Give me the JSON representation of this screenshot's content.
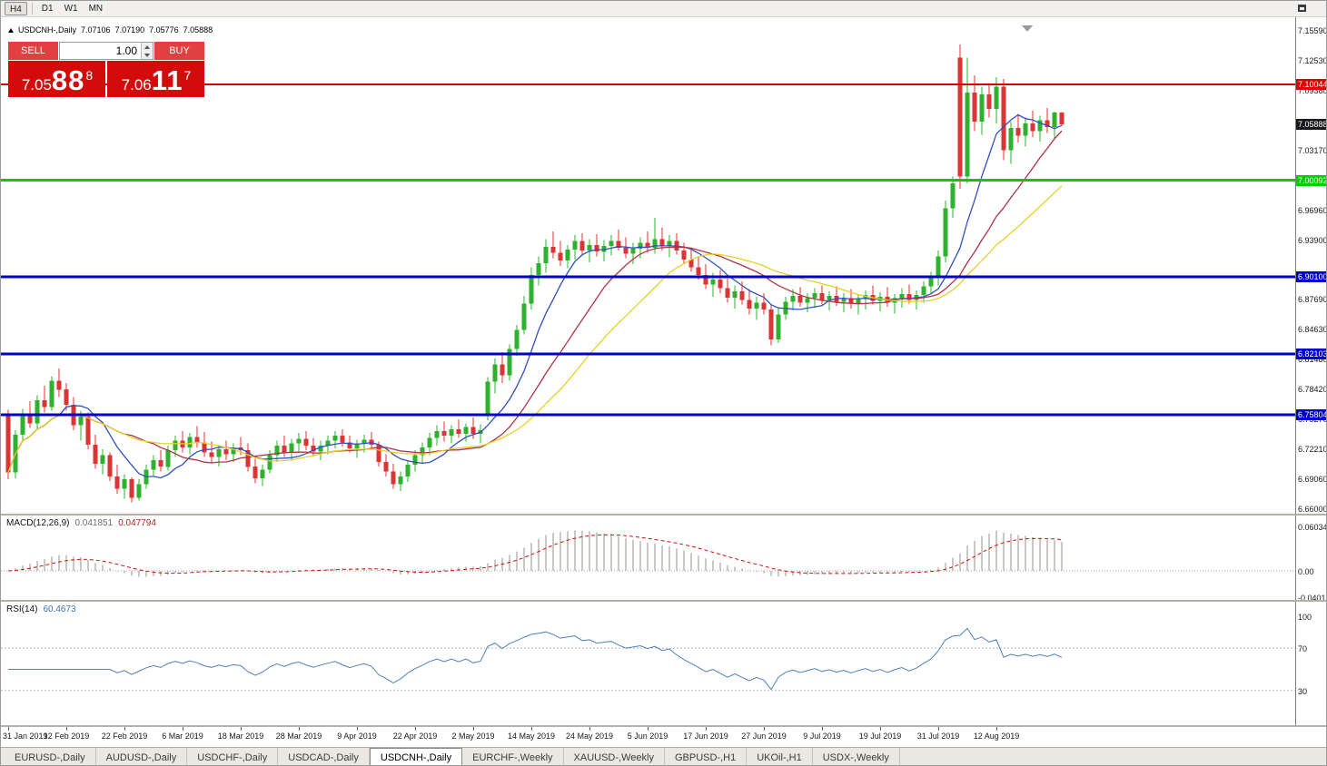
{
  "toolbar": {
    "timeframes": [
      {
        "label": "H4",
        "pressed": true,
        "sep_after": true
      },
      {
        "label": "D1",
        "pressed": false,
        "sep_after": false
      },
      {
        "label": "W1",
        "pressed": false,
        "sep_after": false
      },
      {
        "label": "MN",
        "pressed": false,
        "sep_after": false
      }
    ]
  },
  "chart_header": {
    "symbol": "USDCNH-,Daily",
    "open": "7.07106",
    "high": "7.07190",
    "low": "7.05776",
    "close": "7.05888"
  },
  "trade_panel": {
    "sell_label": "SELL",
    "buy_label": "BUY",
    "volume": "1.00",
    "bid": {
      "base": "7.05",
      "pips": "88",
      "point": "8"
    },
    "ask": {
      "base": "7.06",
      "pips": "11",
      "point": "7"
    }
  },
  "price_axis": {
    "ticks": [
      "7.15590",
      "7.12530",
      "7.09380",
      "7.03170",
      "6.96960",
      "6.93900",
      "6.87690",
      "6.84630",
      "6.81480",
      "6.78420",
      "6.75270",
      "6.72210",
      "6.69060",
      "6.66000"
    ],
    "current_price": {
      "value": "7.05888",
      "bg": "#17181c"
    }
  },
  "hlines": [
    {
      "price": 7.10044,
      "label": "7.10044",
      "color": "#dd0000",
      "thickness": 2
    },
    {
      "price": 7.00092,
      "label": "7.00092",
      "color": "#00cc00",
      "thickness": 3
    },
    {
      "price": 6.901,
      "label": "6.90100",
      "color": "#0000cc",
      "thickness": 3
    },
    {
      "price": 6.82103,
      "label": "6.82103",
      "color": "#0000cc",
      "thickness": 3
    },
    {
      "price": 6.75804,
      "label": "6.75804",
      "color": "#0000cc",
      "thickness": 3
    }
  ],
  "macd_panel": {
    "label": "MACD(12,26,9)",
    "value_main": "0.041851",
    "value_signal": "0.047794",
    "axis_top": "0.060343",
    "axis_zero": "0.00",
    "axis_bottom": "-0.040136"
  },
  "rsi_panel": {
    "label": "RSI(14)",
    "value": "60.4673",
    "axis": [
      "100",
      "70",
      "30"
    ],
    "levels": [
      70,
      30
    ]
  },
  "time_axis": [
    "31 Jan 2019",
    "12 Feb 2019",
    "22 Feb 2019",
    "6 Mar 2019",
    "18 Mar 2019",
    "28 Mar 2019",
    "9 Apr 2019",
    "22 Apr 2019",
    "2 May 2019",
    "14 May 2019",
    "24 May 2019",
    "5 Jun 2019",
    "17 Jun 2019",
    "27 Jun 2019",
    "9 Jul 2019",
    "19 Jul 2019",
    "31 Jul 2019",
    "12 Aug 2019"
  ],
  "tabs": [
    {
      "label": "EURUSD-,Daily",
      "active": false
    },
    {
      "label": "AUDUSD-,Daily",
      "active": false
    },
    {
      "label": "USDCHF-,Daily",
      "active": false
    },
    {
      "label": "USDCAD-,Daily",
      "active": false
    },
    {
      "label": "USDCNH-,Daily",
      "active": true
    },
    {
      "label": "EURCHF-,Weekly",
      "active": false
    },
    {
      "label": "XAUUSD-,Weekly",
      "active": false
    },
    {
      "label": "GBPUSD-,H1",
      "active": false
    },
    {
      "label": "UKOil-,H1",
      "active": false
    },
    {
      "label": "USDX-,Weekly",
      "active": false
    }
  ],
  "colors": {
    "candle_up": "#2bb32b",
    "candle_down": "#e03232",
    "ma_fast": "#3050c0",
    "ma_mid": "#b03345",
    "ma_slow": "#e6cf2a",
    "macd_hist": "#b9b5ae",
    "macd_signal": "#cc1111",
    "rsi_line": "#4f82b8"
  },
  "chart_data": {
    "type": "candlestick",
    "symbol": "USDCNH",
    "timeframe": "Daily",
    "price_range": [
      6.66,
      7.1559
    ],
    "ma_periods": [
      8,
      17,
      26
    ],
    "indicators": {
      "macd": [
        12,
        26,
        9
      ],
      "rsi": 14
    },
    "date_label_every_n_bars": 8,
    "ohlc": [
      [
        6.758,
        6.763,
        6.691,
        6.698
      ],
      [
        6.698,
        6.742,
        6.692,
        6.737
      ],
      [
        6.737,
        6.764,
        6.73,
        6.758
      ],
      [
        6.758,
        6.772,
        6.744,
        6.749
      ],
      [
        6.749,
        6.778,
        6.743,
        6.773
      ],
      [
        6.773,
        6.788,
        6.76,
        6.766
      ],
      [
        6.766,
        6.798,
        6.762,
        6.793
      ],
      [
        6.793,
        6.806,
        6.776,
        6.784
      ],
      [
        6.784,
        6.791,
        6.762,
        6.768
      ],
      [
        6.768,
        6.776,
        6.742,
        6.747
      ],
      [
        6.747,
        6.762,
        6.731,
        6.756
      ],
      [
        6.756,
        6.76,
        6.722,
        6.727
      ],
      [
        6.727,
        6.737,
        6.702,
        6.707
      ],
      [
        6.707,
        6.722,
        6.696,
        6.716
      ],
      [
        6.716,
        6.719,
        6.689,
        6.694
      ],
      [
        6.694,
        6.706,
        6.676,
        6.681
      ],
      [
        6.681,
        6.696,
        6.671,
        6.691
      ],
      [
        6.691,
        6.693,
        6.667,
        6.672
      ],
      [
        6.672,
        6.691,
        6.669,
        6.686
      ],
      [
        6.686,
        6.706,
        6.681,
        6.701
      ],
      [
        6.701,
        6.716,
        6.695,
        6.711
      ],
      [
        6.711,
        6.721,
        6.699,
        6.704
      ],
      [
        6.704,
        6.726,
        6.7,
        6.721
      ],
      [
        6.721,
        6.736,
        6.714,
        6.731
      ],
      [
        6.731,
        6.741,
        6.719,
        6.724
      ],
      [
        6.724,
        6.739,
        6.717,
        6.735
      ],
      [
        6.735,
        6.746,
        6.724,
        6.729
      ],
      [
        6.729,
        6.74,
        6.714,
        6.719
      ],
      [
        6.719,
        6.73,
        6.708,
        6.714
      ],
      [
        6.714,
        6.726,
        6.704,
        6.722
      ],
      [
        6.722,
        6.731,
        6.711,
        6.717
      ],
      [
        6.717,
        6.728,
        6.709,
        6.724
      ],
      [
        6.724,
        6.735,
        6.716,
        6.721
      ],
      [
        6.721,
        6.728,
        6.699,
        6.704
      ],
      [
        6.704,
        6.712,
        6.687,
        6.692
      ],
      [
        6.692,
        6.706,
        6.684,
        6.701
      ],
      [
        6.701,
        6.721,
        6.697,
        6.716
      ],
      [
        6.716,
        6.731,
        6.709,
        6.726
      ],
      [
        6.726,
        6.736,
        6.714,
        6.719
      ],
      [
        6.719,
        6.733,
        6.711,
        6.728
      ],
      [
        6.728,
        6.739,
        6.719,
        6.733
      ],
      [
        6.733,
        6.741,
        6.721,
        6.726
      ],
      [
        6.726,
        6.734,
        6.715,
        6.72
      ],
      [
        6.72,
        6.731,
        6.711,
        6.726
      ],
      [
        6.726,
        6.736,
        6.717,
        6.731
      ],
      [
        6.731,
        6.741,
        6.723,
        6.736
      ],
      [
        6.736,
        6.743,
        6.725,
        6.729
      ],
      [
        6.729,
        6.736,
        6.719,
        6.723
      ],
      [
        6.723,
        6.732,
        6.713,
        6.728
      ],
      [
        6.728,
        6.737,
        6.719,
        6.732
      ],
      [
        6.732,
        6.74,
        6.724,
        6.727
      ],
      [
        6.727,
        6.73,
        6.704,
        6.709
      ],
      [
        6.709,
        6.717,
        6.694,
        6.699
      ],
      [
        6.699,
        6.707,
        6.681,
        6.686
      ],
      [
        6.686,
        6.699,
        6.679,
        6.694
      ],
      [
        6.694,
        6.711,
        6.688,
        6.706
      ],
      [
        6.706,
        6.721,
        6.699,
        6.716
      ],
      [
        6.716,
        6.729,
        6.708,
        6.724
      ],
      [
        6.724,
        6.739,
        6.716,
        6.734
      ],
      [
        6.734,
        6.747,
        6.726,
        6.741
      ],
      [
        6.741,
        6.751,
        6.73,
        6.736
      ],
      [
        6.736,
        6.747,
        6.728,
        6.743
      ],
      [
        6.743,
        6.753,
        6.734,
        6.738
      ],
      [
        6.738,
        6.749,
        6.73,
        6.745
      ],
      [
        6.745,
        6.755,
        6.733,
        6.738
      ],
      [
        6.738,
        6.748,
        6.728,
        6.742
      ],
      [
        6.758,
        6.797,
        6.752,
        6.792
      ],
      [
        6.792,
        6.816,
        6.78,
        6.81
      ],
      [
        6.81,
        6.823,
        6.791,
        6.799
      ],
      [
        6.799,
        6.831,
        6.793,
        6.826
      ],
      [
        6.826,
        6.851,
        6.819,
        6.846
      ],
      [
        6.846,
        6.881,
        6.841,
        6.873
      ],
      [
        6.873,
        6.911,
        6.867,
        6.903
      ],
      [
        6.903,
        6.922,
        6.892,
        6.915
      ],
      [
        6.915,
        6.94,
        6.905,
        6.932
      ],
      [
        6.932,
        6.948,
        6.92,
        6.926
      ],
      [
        6.926,
        6.938,
        6.912,
        6.918
      ],
      [
        6.918,
        6.934,
        6.91,
        6.929
      ],
      [
        6.929,
        6.944,
        6.919,
        6.938
      ],
      [
        6.938,
        6.946,
        6.924,
        6.928
      ],
      [
        6.928,
        6.94,
        6.916,
        6.934
      ],
      [
        6.934,
        6.945,
        6.922,
        6.927
      ],
      [
        6.927,
        6.939,
        6.917,
        6.933
      ],
      [
        6.933,
        6.944,
        6.923,
        6.938
      ],
      [
        6.938,
        6.95,
        6.928,
        6.931
      ],
      [
        6.931,
        6.942,
        6.92,
        6.925
      ],
      [
        6.925,
        6.936,
        6.914,
        6.93
      ],
      [
        6.93,
        6.942,
        6.92,
        6.936
      ],
      [
        6.936,
        6.948,
        6.926,
        6.931
      ],
      [
        6.931,
        6.962,
        6.925,
        6.94
      ],
      [
        6.94,
        6.952,
        6.928,
        6.933
      ],
      [
        6.933,
        6.944,
        6.921,
        6.938
      ],
      [
        6.938,
        6.946,
        6.924,
        6.928
      ],
      [
        6.928,
        6.936,
        6.914,
        6.919
      ],
      [
        6.919,
        6.93,
        6.906,
        6.911
      ],
      [
        6.911,
        6.922,
        6.898,
        6.903
      ],
      [
        6.903,
        6.914,
        6.888,
        6.893
      ],
      [
        6.893,
        6.905,
        6.88,
        6.898
      ],
      [
        6.898,
        6.908,
        6.884,
        6.889
      ],
      [
        6.889,
        6.899,
        6.874,
        6.879
      ],
      [
        6.879,
        6.892,
        6.868,
        6.886
      ],
      [
        6.886,
        6.896,
        6.872,
        6.877
      ],
      [
        6.877,
        6.888,
        6.862,
        6.868
      ],
      [
        6.868,
        6.88,
        6.856,
        6.874
      ],
      [
        6.874,
        6.884,
        6.862,
        6.867
      ],
      [
        6.867,
        6.872,
        6.83,
        6.836
      ],
      [
        6.836,
        6.868,
        6.832,
        6.862
      ],
      [
        6.862,
        6.88,
        6.856,
        6.875
      ],
      [
        6.875,
        6.888,
        6.866,
        6.881
      ],
      [
        6.881,
        6.89,
        6.87,
        6.874
      ],
      [
        6.874,
        6.884,
        6.864,
        6.879
      ],
      [
        6.879,
        6.889,
        6.869,
        6.884
      ],
      [
        6.884,
        6.892,
        6.872,
        6.877
      ],
      [
        6.877,
        6.886,
        6.866,
        6.881
      ],
      [
        6.881,
        6.891,
        6.871,
        6.875
      ],
      [
        6.875,
        6.884,
        6.864,
        6.879
      ],
      [
        6.879,
        6.888,
        6.868,
        6.873
      ],
      [
        6.873,
        6.882,
        6.862,
        6.878
      ],
      [
        6.878,
        6.887,
        6.867,
        6.882
      ],
      [
        6.882,
        6.892,
        6.872,
        6.876
      ],
      [
        6.876,
        6.885,
        6.865,
        6.88
      ],
      [
        6.88,
        6.89,
        6.87,
        6.874
      ],
      [
        6.874,
        6.883,
        6.863,
        6.879
      ],
      [
        6.879,
        6.889,
        6.869,
        6.883
      ],
      [
        6.883,
        6.893,
        6.873,
        6.877
      ],
      [
        6.877,
        6.887,
        6.867,
        6.882
      ],
      [
        6.882,
        6.896,
        6.874,
        6.891
      ],
      [
        6.891,
        6.906,
        6.883,
        6.9
      ],
      [
        6.9,
        6.928,
        6.892,
        6.922
      ],
      [
        6.922,
        6.98,
        6.916,
        6.972
      ],
      [
        6.972,
        7.005,
        6.962,
        6.998
      ],
      [
        7.128,
        7.142,
        6.992,
        7.005
      ],
      [
        7.005,
        7.128,
        6.998,
        7.092
      ],
      [
        7.092,
        7.11,
        7.052,
        7.062
      ],
      [
        7.062,
        7.098,
        7.048,
        7.09
      ],
      [
        7.09,
        7.102,
        7.066,
        7.075
      ],
      [
        7.075,
        7.108,
        7.06,
        7.098
      ],
      [
        7.098,
        7.106,
        7.022,
        7.032
      ],
      [
        7.032,
        7.062,
        7.018,
        7.055
      ],
      [
        7.055,
        7.07,
        7.04,
        7.047
      ],
      [
        7.047,
        7.066,
        7.036,
        7.06
      ],
      [
        7.06,
        7.073,
        7.046,
        7.052
      ],
      [
        7.052,
        7.068,
        7.041,
        7.063
      ],
      [
        7.063,
        7.076,
        7.05,
        7.056
      ],
      [
        7.056,
        7.072,
        7.045,
        7.0711
      ],
      [
        7.0711,
        7.0719,
        7.0578,
        7.0589
      ]
    ]
  }
}
